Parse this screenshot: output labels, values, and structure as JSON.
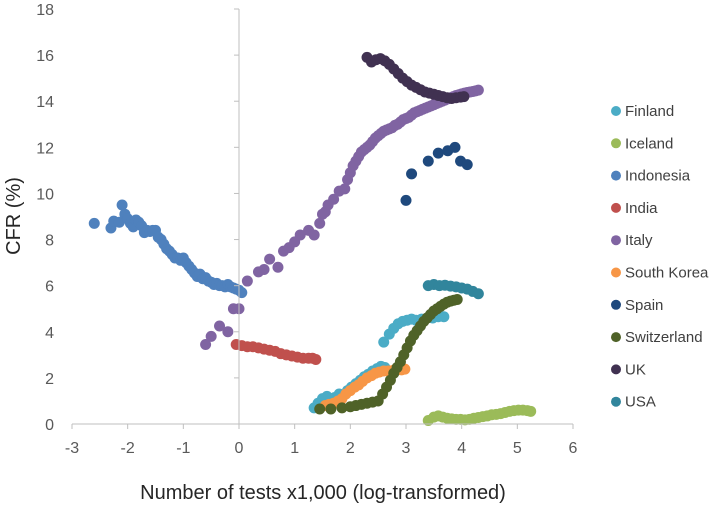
{
  "chart_data": {
    "type": "scatter",
    "xlabel": "Number of tests x1,000 (log-transformed)",
    "ylabel": "CFR (%)",
    "xlim": [
      -3,
      6
    ],
    "ylim": [
      0,
      18
    ],
    "xticks": [
      "-3",
      "-2",
      "-1",
      "0",
      "1",
      "2",
      "3",
      "4",
      "5",
      "6"
    ],
    "yticks": [
      "0",
      "2",
      "4",
      "6",
      "8",
      "10",
      "12",
      "14",
      "16",
      "18"
    ],
    "grid": false,
    "legend_position": "right",
    "series": [
      {
        "name": "Finland",
        "color": "#4bacc6",
        "points": [
          [
            1.35,
            0.7
          ],
          [
            1.42,
            0.9
          ],
          [
            1.5,
            1.1
          ],
          [
            1.58,
            1.2
          ],
          [
            1.65,
            1.05
          ],
          [
            1.72,
            1.15
          ],
          [
            1.8,
            1.3
          ],
          [
            1.88,
            1.25
          ],
          [
            1.95,
            1.45
          ],
          [
            2.02,
            1.6
          ],
          [
            2.1,
            1.75
          ],
          [
            2.18,
            1.9
          ],
          [
            2.25,
            2.05
          ],
          [
            2.32,
            2.15
          ],
          [
            2.4,
            2.3
          ],
          [
            2.48,
            2.4
          ],
          [
            2.55,
            2.5
          ],
          [
            2.62,
            2.45
          ],
          [
            2.6,
            3.55
          ],
          [
            2.7,
            3.9
          ],
          [
            2.78,
            4.15
          ],
          [
            2.86,
            4.35
          ],
          [
            2.94,
            4.45
          ],
          [
            3.02,
            4.5
          ],
          [
            3.1,
            4.55
          ],
          [
            3.18,
            4.5
          ],
          [
            3.28,
            4.55
          ],
          [
            3.38,
            4.6
          ],
          [
            3.48,
            4.6
          ],
          [
            3.58,
            4.65
          ],
          [
            3.68,
            4.65
          ]
        ]
      },
      {
        "name": "Iceland",
        "color": "#9bbb59",
        "points": [
          [
            3.4,
            0.15
          ],
          [
            3.5,
            0.3
          ],
          [
            3.58,
            0.35
          ],
          [
            3.66,
            0.3
          ],
          [
            3.74,
            0.25
          ],
          [
            3.82,
            0.22
          ],
          [
            3.9,
            0.2
          ],
          [
            3.98,
            0.2
          ],
          [
            4.06,
            0.18
          ],
          [
            4.14,
            0.2
          ],
          [
            4.22,
            0.25
          ],
          [
            4.3,
            0.28
          ],
          [
            4.38,
            0.32
          ],
          [
            4.46,
            0.35
          ],
          [
            4.54,
            0.4
          ],
          [
            4.62,
            0.42
          ],
          [
            4.7,
            0.45
          ],
          [
            4.78,
            0.5
          ],
          [
            4.86,
            0.55
          ],
          [
            4.94,
            0.58
          ],
          [
            5.02,
            0.6
          ],
          [
            5.1,
            0.6
          ],
          [
            5.18,
            0.58
          ],
          [
            5.24,
            0.55
          ]
        ]
      },
      {
        "name": "Indonesia",
        "color": "#4f81bd",
        "points": [
          [
            -2.6,
            8.7
          ],
          [
            -2.3,
            8.5
          ],
          [
            -2.25,
            8.8
          ],
          [
            -2.15,
            8.75
          ],
          [
            -2.1,
            9.5
          ],
          [
            -2.05,
            9.1
          ],
          [
            -2.0,
            8.9
          ],
          [
            -1.95,
            8.7
          ],
          [
            -1.9,
            8.55
          ],
          [
            -1.85,
            8.85
          ],
          [
            -1.8,
            8.75
          ],
          [
            -1.75,
            8.6
          ],
          [
            -1.7,
            8.3
          ],
          [
            -1.65,
            8.4
          ],
          [
            -1.6,
            8.35
          ],
          [
            -1.55,
            8.4
          ],
          [
            -1.5,
            8.4
          ],
          [
            -1.45,
            8.1
          ],
          [
            -1.4,
            8.0
          ],
          [
            -1.35,
            7.8
          ],
          [
            -1.3,
            7.6
          ],
          [
            -1.25,
            7.5
          ],
          [
            -1.2,
            7.35
          ],
          [
            -1.15,
            7.2
          ],
          [
            -1.1,
            7.2
          ],
          [
            -1.05,
            7.1
          ],
          [
            -1.0,
            7.2
          ],
          [
            -0.95,
            7.0
          ],
          [
            -0.9,
            6.85
          ],
          [
            -0.85,
            6.7
          ],
          [
            -0.8,
            6.55
          ],
          [
            -0.75,
            6.4
          ],
          [
            -0.7,
            6.5
          ],
          [
            -0.65,
            6.3
          ],
          [
            -0.6,
            6.35
          ],
          [
            -0.55,
            6.2
          ],
          [
            -0.5,
            6.15
          ],
          [
            -0.45,
            6.05
          ],
          [
            -0.4,
            6.1
          ],
          [
            -0.35,
            6.0
          ],
          [
            -0.3,
            6.0
          ],
          [
            -0.25,
            5.95
          ],
          [
            -0.2,
            6.05
          ],
          [
            -0.15,
            5.95
          ],
          [
            -0.1,
            5.9
          ],
          [
            -0.05,
            5.85
          ],
          [
            0.0,
            5.8
          ],
          [
            0.05,
            5.7
          ]
        ]
      },
      {
        "name": "India",
        "color": "#c0504d",
        "points": [
          [
            -0.05,
            3.45
          ],
          [
            0.05,
            3.4
          ],
          [
            0.15,
            3.35
          ],
          [
            0.25,
            3.35
          ],
          [
            0.35,
            3.3
          ],
          [
            0.45,
            3.25
          ],
          [
            0.55,
            3.2
          ],
          [
            0.65,
            3.15
          ],
          [
            0.75,
            3.05
          ],
          [
            0.85,
            3.0
          ],
          [
            0.95,
            2.95
          ],
          [
            1.05,
            2.9
          ],
          [
            1.15,
            2.85
          ],
          [
            1.25,
            2.85
          ],
          [
            1.32,
            2.85
          ],
          [
            1.38,
            2.8
          ]
        ]
      },
      {
        "name": "Italy",
        "color": "#8064a2",
        "points": [
          [
            -0.6,
            3.45
          ],
          [
            -0.5,
            3.8
          ],
          [
            -0.35,
            4.25
          ],
          [
            -0.2,
            4.0
          ],
          [
            -0.1,
            5.0
          ],
          [
            0.0,
            5.0
          ],
          [
            0.15,
            6.2
          ],
          [
            0.35,
            6.6
          ],
          [
            0.45,
            6.7
          ],
          [
            0.55,
            7.15
          ],
          [
            0.7,
            6.8
          ],
          [
            0.8,
            7.5
          ],
          [
            0.9,
            7.65
          ],
          [
            1.0,
            7.9
          ],
          [
            1.1,
            8.2
          ],
          [
            1.25,
            8.4
          ],
          [
            1.35,
            8.2
          ],
          [
            1.45,
            8.7
          ],
          [
            1.5,
            9.1
          ],
          [
            1.55,
            9.2
          ],
          [
            1.6,
            9.5
          ],
          [
            1.7,
            9.75
          ],
          [
            1.8,
            10.1
          ],
          [
            1.9,
            10.2
          ],
          [
            1.95,
            10.6
          ],
          [
            2.0,
            10.9
          ],
          [
            2.05,
            11.2
          ],
          [
            2.1,
            11.4
          ],
          [
            2.15,
            11.6
          ],
          [
            2.2,
            11.8
          ],
          [
            2.25,
            11.9
          ],
          [
            2.3,
            12.0
          ],
          [
            2.35,
            12.1
          ],
          [
            2.4,
            12.25
          ],
          [
            2.45,
            12.4
          ],
          [
            2.5,
            12.5
          ],
          [
            2.55,
            12.6
          ],
          [
            2.6,
            12.7
          ],
          [
            2.65,
            12.75
          ],
          [
            2.7,
            12.8
          ],
          [
            2.75,
            12.85
          ],
          [
            2.8,
            12.95
          ],
          [
            2.85,
            13.0
          ],
          [
            2.9,
            13.1
          ],
          [
            2.95,
            13.2
          ],
          [
            3.0,
            13.25
          ],
          [
            3.05,
            13.3
          ],
          [
            3.1,
            13.4
          ],
          [
            3.15,
            13.5
          ],
          [
            3.2,
            13.55
          ],
          [
            3.25,
            13.6
          ],
          [
            3.3,
            13.65
          ],
          [
            3.35,
            13.7
          ],
          [
            3.4,
            13.75
          ],
          [
            3.45,
            13.8
          ],
          [
            3.5,
            13.85
          ],
          [
            3.55,
            13.9
          ],
          [
            3.6,
            13.95
          ],
          [
            3.65,
            14.0
          ],
          [
            3.7,
            14.05
          ],
          [
            3.75,
            14.1
          ],
          [
            3.8,
            14.15
          ],
          [
            3.85,
            14.2
          ],
          [
            3.9,
            14.25
          ],
          [
            3.95,
            14.28
          ],
          [
            4.0,
            14.32
          ],
          [
            4.05,
            14.35
          ],
          [
            4.1,
            14.38
          ],
          [
            4.15,
            14.4
          ],
          [
            4.2,
            14.42
          ],
          [
            4.25,
            14.45
          ],
          [
            4.3,
            14.48
          ]
        ]
      },
      {
        "name": "South Korea",
        "color": "#f79646",
        "points": [
          [
            1.55,
            0.8
          ],
          [
            1.62,
            0.85
          ],
          [
            1.7,
            0.9
          ],
          [
            1.78,
            1.0
          ],
          [
            1.85,
            1.1
          ],
          [
            1.92,
            1.3
          ],
          [
            2.0,
            1.45
          ],
          [
            2.08,
            1.6
          ],
          [
            2.15,
            1.7
          ],
          [
            2.22,
            1.85
          ],
          [
            2.3,
            2.0
          ],
          [
            2.38,
            2.1
          ],
          [
            2.45,
            2.2
          ],
          [
            2.52,
            2.25
          ],
          [
            2.6,
            2.3
          ],
          [
            2.68,
            2.3
          ],
          [
            2.76,
            2.32
          ],
          [
            2.84,
            2.35
          ],
          [
            2.92,
            2.35
          ],
          [
            2.98,
            2.38
          ]
        ]
      },
      {
        "name": "Spain",
        "color": "#1f497d",
        "points": [
          [
            3.0,
            9.7
          ],
          [
            3.1,
            10.85
          ],
          [
            3.4,
            11.4
          ],
          [
            3.58,
            11.75
          ],
          [
            3.75,
            11.85
          ],
          [
            3.88,
            12.0
          ],
          [
            3.98,
            11.4
          ],
          [
            4.1,
            11.25
          ]
        ]
      },
      {
        "name": "Switzerland",
        "color": "#4f6228",
        "points": [
          [
            1.45,
            0.65
          ],
          [
            1.65,
            0.65
          ],
          [
            1.85,
            0.7
          ],
          [
            2.0,
            0.75
          ],
          [
            2.1,
            0.8
          ],
          [
            2.2,
            0.85
          ],
          [
            2.3,
            0.9
          ],
          [
            2.4,
            0.95
          ],
          [
            2.5,
            1.0
          ],
          [
            2.58,
            1.3
          ],
          [
            2.65,
            1.6
          ],
          [
            2.72,
            1.9
          ],
          [
            2.78,
            2.2
          ],
          [
            2.84,
            2.45
          ],
          [
            2.9,
            2.7
          ],
          [
            2.96,
            3.0
          ],
          [
            3.02,
            3.3
          ],
          [
            3.08,
            3.6
          ],
          [
            3.14,
            3.85
          ],
          [
            3.2,
            4.05
          ],
          [
            3.26,
            4.25
          ],
          [
            3.32,
            4.45
          ],
          [
            3.38,
            4.6
          ],
          [
            3.44,
            4.75
          ],
          [
            3.5,
            4.9
          ],
          [
            3.56,
            5.0
          ],
          [
            3.62,
            5.1
          ],
          [
            3.68,
            5.2
          ],
          [
            3.74,
            5.28
          ],
          [
            3.8,
            5.33
          ],
          [
            3.86,
            5.37
          ],
          [
            3.92,
            5.4
          ]
        ]
      },
      {
        "name": "UK",
        "color": "#403151",
        "points": [
          [
            2.3,
            15.9
          ],
          [
            2.38,
            15.7
          ],
          [
            2.46,
            15.8
          ],
          [
            2.54,
            15.85
          ],
          [
            2.62,
            15.75
          ],
          [
            2.7,
            15.6
          ],
          [
            2.78,
            15.4
          ],
          [
            2.86,
            15.2
          ],
          [
            2.94,
            15.0
          ],
          [
            3.02,
            14.85
          ],
          [
            3.1,
            14.7
          ],
          [
            3.18,
            14.6
          ],
          [
            3.26,
            14.5
          ],
          [
            3.34,
            14.4
          ],
          [
            3.42,
            14.35
          ],
          [
            3.5,
            14.3
          ],
          [
            3.58,
            14.25
          ],
          [
            3.66,
            14.2
          ],
          [
            3.74,
            14.15
          ],
          [
            3.82,
            14.12
          ],
          [
            3.9,
            14.15
          ],
          [
            3.98,
            14.18
          ],
          [
            4.04,
            14.2
          ]
        ]
      },
      {
        "name": "USA",
        "color": "#31859c",
        "points": [
          [
            3.4,
            6.0
          ],
          [
            3.5,
            6.05
          ],
          [
            3.6,
            6.0
          ],
          [
            3.7,
            6.02
          ],
          [
            3.8,
            5.98
          ],
          [
            3.9,
            5.95
          ],
          [
            4.0,
            5.9
          ],
          [
            4.1,
            5.85
          ],
          [
            4.2,
            5.75
          ],
          [
            4.3,
            5.65
          ]
        ]
      }
    ]
  }
}
